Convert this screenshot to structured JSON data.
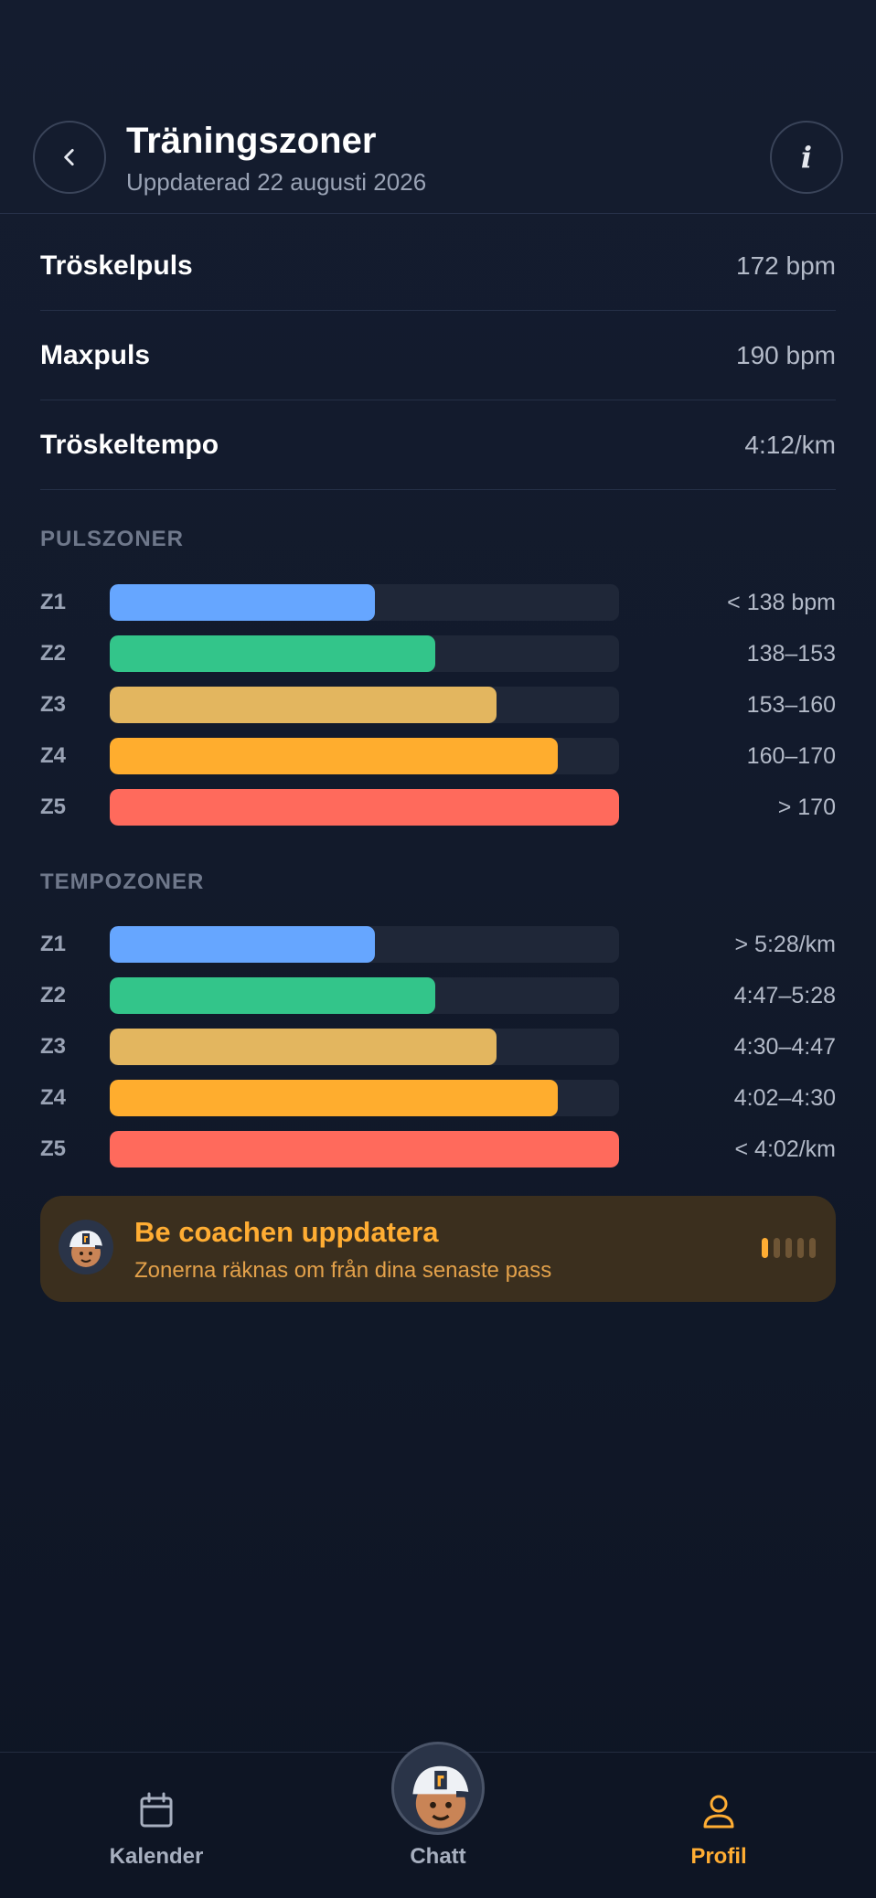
{
  "header": {
    "title": "Träningszoner",
    "subtitle": "Uppdaterad 22 augusti 2026",
    "back_icon": "chevron-left-icon",
    "info_icon": "info-icon",
    "info_glyph": "i"
  },
  "stats": [
    {
      "label": "Tröskelpuls",
      "value": "172 bpm"
    },
    {
      "label": "Maxpuls",
      "value": "190 bpm"
    },
    {
      "label": "Tröskeltempo",
      "value": "4:12/km"
    }
  ],
  "pulse_zones": {
    "title": "PULSZONER",
    "zones": [
      {
        "label": "Z1",
        "value": "< 138 bpm",
        "fill": 0.52,
        "color": "#66a6ff"
      },
      {
        "label": "Z2",
        "value": "138–153",
        "fill": 0.64,
        "color": "#33c58a"
      },
      {
        "label": "Z3",
        "value": "153–160",
        "fill": 0.76,
        "color": "#e3b65f"
      },
      {
        "label": "Z4",
        "value": "160–170",
        "fill": 0.88,
        "color": "#ffad2e"
      },
      {
        "label": "Z5",
        "value": "> 170",
        "fill": 1.0,
        "color": "#ff6a5c"
      }
    ]
  },
  "tempo_zones": {
    "title": "TEMPOZONER",
    "zones": [
      {
        "label": "Z1",
        "value": "> 5:28/km",
        "fill": 0.52,
        "color": "#66a6ff"
      },
      {
        "label": "Z2",
        "value": "4:47–5:28",
        "fill": 0.64,
        "color": "#33c58a"
      },
      {
        "label": "Z3",
        "value": "4:30–4:47",
        "fill": 0.76,
        "color": "#e3b65f"
      },
      {
        "label": "Z4",
        "value": "4:02–4:30",
        "fill": 0.88,
        "color": "#ffad2e"
      },
      {
        "label": "Z5",
        "value": "< 4:02/km",
        "fill": 1.0,
        "color": "#ff6a5c"
      }
    ]
  },
  "coach_card": {
    "title": "Be coachen uppdatera",
    "subtitle": "Zonerna räknas om från dina senaste pass",
    "avatar_icon": "coach-avatar-icon",
    "loader_icon": "loading-bars-icon"
  },
  "bottom_nav": {
    "calendar": {
      "label": "Kalender",
      "icon": "calendar-icon"
    },
    "chat": {
      "label": "Chatt",
      "icon": "coach-avatar-icon"
    },
    "profile": {
      "label": "Profil",
      "icon": "person-icon",
      "active": true
    }
  },
  "colors": {
    "accent": "#ffad33",
    "background": "#121a2b"
  }
}
